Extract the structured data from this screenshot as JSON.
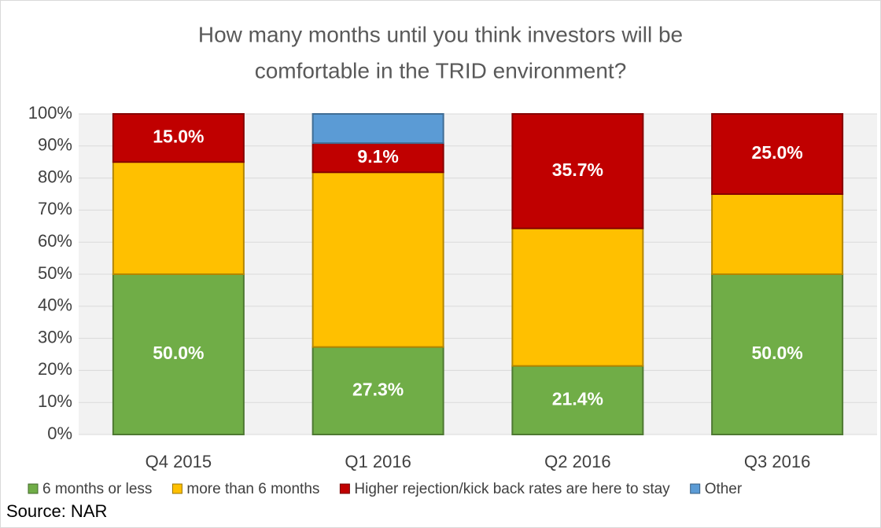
{
  "chart_data": {
    "type": "stacked_bar",
    "title": [
      "How many months until you think investors will be",
      "comfortable in the TRID environment?"
    ],
    "categories": [
      "Q4 2015",
      "Q1 2016",
      "Q2 2016",
      "Q3 2016"
    ],
    "series": [
      {
        "name": "6 months or less",
        "color": "#70ad47",
        "values": [
          50.0,
          27.3,
          21.4,
          50.0
        ],
        "value_labels": [
          "50.0%",
          "27.3%",
          "21.4%",
          "50.0%"
        ]
      },
      {
        "name": "more than 6 months",
        "color": "#ffc000",
        "values": [
          35.0,
          54.5,
          42.9,
          25.0
        ]
      },
      {
        "name": "Higher rejection/kick back rates are here to stay",
        "color": "#c00000",
        "values": [
          15.0,
          9.1,
          35.7,
          25.0
        ],
        "value_labels": [
          "15.0%",
          "9.1%",
          "35.7%",
          "25.0%"
        ]
      },
      {
        "name": "Other",
        "color": "#5b9bd5",
        "values": [
          0,
          9.1,
          0,
          0
        ]
      }
    ],
    "ylim": [
      0,
      100
    ],
    "yticks": [
      {
        "value": 0,
        "label": "0%"
      },
      {
        "value": 10,
        "label": "10%"
      },
      {
        "value": 20,
        "label": "20%"
      },
      {
        "value": 30,
        "label": "30%"
      },
      {
        "value": 40,
        "label": "40%"
      },
      {
        "value": 50,
        "label": "50%"
      },
      {
        "value": 60,
        "label": "60%"
      },
      {
        "value": 70,
        "label": "70%"
      },
      {
        "value": 80,
        "label": "80%"
      },
      {
        "value": 90,
        "label": "90%"
      },
      {
        "value": 100,
        "label": "100%"
      }
    ],
    "grid": true,
    "legend": "bottom",
    "source": "Source: NAR"
  }
}
